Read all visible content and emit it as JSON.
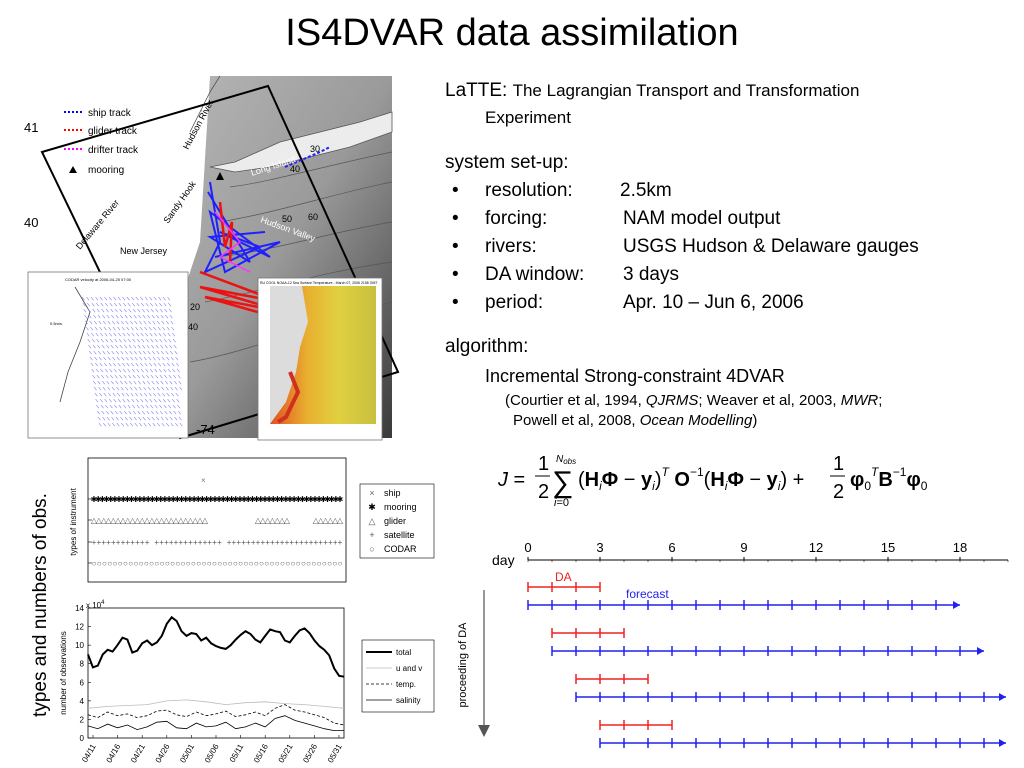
{
  "slide": {
    "title": "IS4DVAR data assimilation",
    "vertical_caption": "types and numbers of obs."
  },
  "text": {
    "latte_head": "LaTTE:",
    "latte_desc_1": "The Lagrangian Transport and Transformation",
    "latte_desc_2": "Experiment",
    "setup_head": "system set-up:",
    "bullets": [
      {
        "label": "resolution:",
        "value": "2.5km"
      },
      {
        "label": "forcing:",
        "value": "NAM model output"
      },
      {
        "label": "rivers:",
        "value": "USGS Hudson & Delaware gauges"
      },
      {
        "label": "DA window:",
        "value": "3 days"
      },
      {
        "label": "period:",
        "value": "Apr. 10 – Jun 6, 2006"
      }
    ],
    "algorithm_head": "algorithm:",
    "algorithm_name": "Incremental Strong-constraint 4DVAR",
    "refs": {
      "r1a": "(Courtier et al, 1994, ",
      "r1b": "QJRMS",
      "r1c": "; Weaver et al, 2003, ",
      "r1d": "MWR",
      "r1e": ";",
      "r2a": "Powell et al, 2008, ",
      "r2b": "Ocean Modelling",
      "r2c": ")"
    }
  },
  "map": {
    "lat_labels": [
      "41",
      "40"
    ],
    "lon_label": "-74",
    "legend": [
      {
        "label": "ship track",
        "color": "#0000ff"
      },
      {
        "label": "glider track",
        "color": "#ff0000"
      },
      {
        "label": "drifter track",
        "color": "#ff00ff"
      },
      {
        "label": "mooring",
        "color": "#000000"
      }
    ],
    "place_labels": [
      "Hudson River",
      "Long Island",
      "Sandy Hook",
      "Delaware River",
      "New Jersey",
      "Hudson Valley"
    ],
    "contours": [
      "30",
      "40",
      "50",
      "60",
      "40",
      "20"
    ],
    "codar_title": "CODAR velocity at 2006-04-25 07:00",
    "codar_scale": "0.5m/s",
    "sst_title": "RU COOL  NOAA-12  Sea Surface Temperature - March 07, 2006 2158 GMT"
  },
  "obs_types": {
    "ylabel": "types of instrument",
    "legend": [
      "ship",
      "mooring",
      "glider",
      "satellite",
      "CODAR"
    ]
  },
  "chart_data": {
    "type": "line",
    "ylabel": "number of observations",
    "exponent_label": "x 10",
    "exponent": "4",
    "yticks": [
      "0",
      "2",
      "4",
      "6",
      "8",
      "10",
      "12",
      "14"
    ],
    "ylim": [
      0,
      14
    ],
    "xticks": [
      "04/11",
      "04/16",
      "04/21",
      "04/26",
      "05/01",
      "05/06",
      "05/11",
      "05/16",
      "05/21",
      "05/26",
      "05/31"
    ],
    "x_day_start": 0,
    "x_day_end": 52,
    "series": [
      {
        "name": "total",
        "style": "solid-thick",
        "color": "#000000",
        "values": [
          [
            0,
            9
          ],
          [
            1,
            7.6
          ],
          [
            2,
            7.8
          ],
          [
            3,
            9
          ],
          [
            4,
            9.5
          ],
          [
            5,
            9.3
          ],
          [
            6,
            10
          ],
          [
            7,
            10.8
          ],
          [
            8,
            10.6
          ],
          [
            9,
            9.2
          ],
          [
            10,
            9.4
          ],
          [
            11,
            10.2
          ],
          [
            12,
            10.5
          ],
          [
            13,
            10
          ],
          [
            14,
            10.3
          ],
          [
            15,
            11
          ],
          [
            16,
            12.3
          ],
          [
            17,
            13
          ],
          [
            18,
            12.6
          ],
          [
            19,
            11.5
          ],
          [
            20,
            11
          ],
          [
            21,
            11.3
          ],
          [
            22,
            11.2
          ],
          [
            23,
            10.5
          ],
          [
            24,
            10.8
          ],
          [
            25,
            10.2
          ],
          [
            26,
            9.9
          ],
          [
            27,
            9.7
          ],
          [
            28,
            9.6
          ],
          [
            29,
            10
          ],
          [
            30,
            10.6
          ],
          [
            31,
            11.1
          ],
          [
            32,
            11.5
          ],
          [
            33,
            11.2
          ],
          [
            34,
            10.6
          ],
          [
            35,
            10.3
          ],
          [
            36,
            11
          ],
          [
            37,
            11.7
          ],
          [
            38,
            11.5
          ],
          [
            39,
            11.4
          ],
          [
            40,
            10.5
          ],
          [
            41,
            10.3
          ],
          [
            42,
            11
          ],
          [
            43,
            11.6
          ],
          [
            44,
            11.8
          ],
          [
            45,
            11.3
          ],
          [
            46,
            10.5
          ],
          [
            47,
            9.9
          ],
          [
            48,
            9.5
          ],
          [
            49,
            8.9
          ],
          [
            50,
            7.5
          ],
          [
            51,
            6.7
          ],
          [
            52,
            6.6
          ]
        ]
      },
      {
        "name": "u and v",
        "style": "solid-thin",
        "color": "#bbbbbb",
        "values": [
          [
            0,
            3.2
          ],
          [
            4,
            3.4
          ],
          [
            8,
            3.5
          ],
          [
            12,
            3.6
          ],
          [
            16,
            4
          ],
          [
            20,
            4.1
          ],
          [
            24,
            3.9
          ],
          [
            28,
            3.6
          ],
          [
            32,
            3.8
          ],
          [
            36,
            3.9
          ],
          [
            40,
            3.7
          ],
          [
            44,
            3.6
          ],
          [
            48,
            3.4
          ],
          [
            52,
            3.2
          ]
        ]
      },
      {
        "name": "temp.",
        "style": "dashed",
        "color": "#000000",
        "values": [
          [
            0,
            2.5
          ],
          [
            2,
            2.2
          ],
          [
            4,
            2.8
          ],
          [
            6,
            2.4
          ],
          [
            8,
            2.6
          ],
          [
            10,
            2.2
          ],
          [
            12,
            2.4
          ],
          [
            14,
            2.9
          ],
          [
            16,
            3
          ],
          [
            18,
            2.5
          ],
          [
            20,
            2.3
          ],
          [
            22,
            2.8
          ],
          [
            24,
            2.4
          ],
          [
            26,
            2.6
          ],
          [
            28,
            2.9
          ],
          [
            30,
            2.3
          ],
          [
            32,
            2.5
          ],
          [
            34,
            2.8
          ],
          [
            36,
            2.4
          ],
          [
            38,
            3.2
          ],
          [
            40,
            3.6
          ],
          [
            42,
            3
          ],
          [
            44,
            2.8
          ],
          [
            46,
            2.5
          ],
          [
            48,
            2.2
          ],
          [
            50,
            1.6
          ],
          [
            52,
            1.4
          ]
        ]
      },
      {
        "name": "salinity",
        "style": "solid",
        "color": "#000000",
        "values": [
          [
            0,
            1.3
          ],
          [
            2,
            1
          ],
          [
            4,
            1.5
          ],
          [
            6,
            1.1
          ],
          [
            8,
            1.4
          ],
          [
            10,
            0.9
          ],
          [
            12,
            1.2
          ],
          [
            14,
            1.7
          ],
          [
            16,
            1.8
          ],
          [
            18,
            1.1
          ],
          [
            20,
            1
          ],
          [
            22,
            1.6
          ],
          [
            24,
            1.2
          ],
          [
            26,
            1.3
          ],
          [
            28,
            1.7
          ],
          [
            30,
            1
          ],
          [
            32,
            1.2
          ],
          [
            34,
            1.6
          ],
          [
            36,
            1.2
          ],
          [
            38,
            2.1
          ],
          [
            40,
            2.4
          ],
          [
            42,
            1.9
          ],
          [
            44,
            1.6
          ],
          [
            46,
            1.3
          ],
          [
            48,
            1
          ],
          [
            50,
            0.8
          ],
          [
            52,
            0.8
          ]
        ]
      }
    ]
  },
  "timeline": {
    "axis_label": "day",
    "ticks": [
      "0",
      "3",
      "6",
      "9",
      "12",
      "15",
      "18"
    ],
    "da_label": "DA",
    "forecast_label": "forecast",
    "side_label": "proceeding of DA",
    "da_color": "#ee2222",
    "forecast_color": "#2222ee",
    "windows": [
      {
        "start": 0,
        "da_len": 3,
        "forecast_end": 18
      },
      {
        "start": 1,
        "da_len": 3,
        "forecast_end": 19
      },
      {
        "start": 2,
        "da_len": 3,
        "forecast_end": 20
      },
      {
        "start": 3,
        "da_len": 3,
        "forecast_end": 20
      }
    ]
  }
}
